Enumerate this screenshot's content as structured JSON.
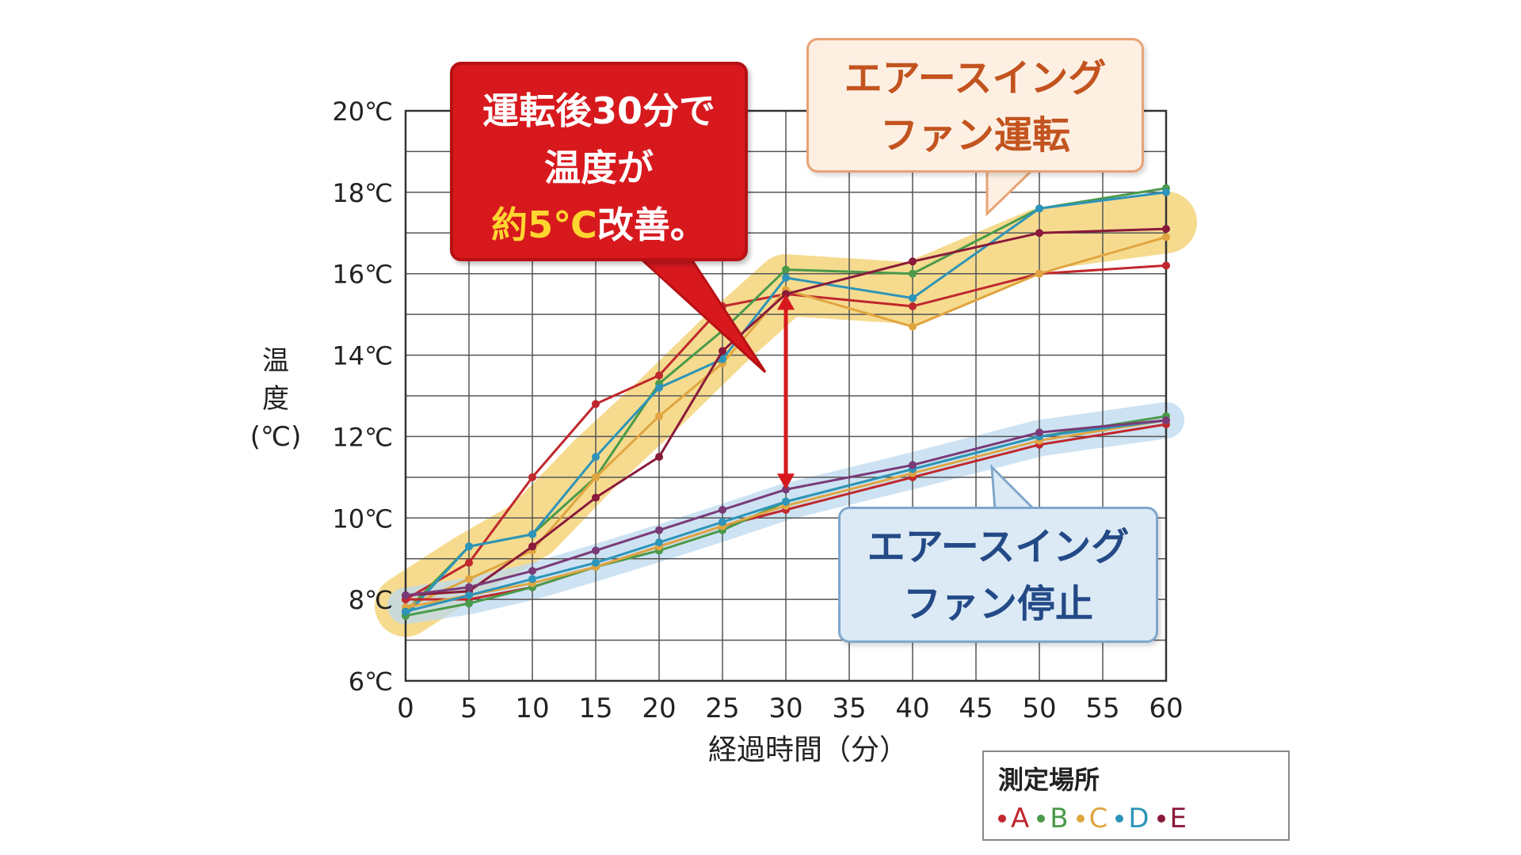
{
  "chart_data": {
    "type": "line",
    "x": [
      0,
      5,
      10,
      15,
      20,
      25,
      30,
      40,
      50,
      60
    ],
    "xticks": [
      "0",
      "5",
      "10",
      "15",
      "20",
      "25",
      "30",
      "35",
      "40",
      "45",
      "50",
      "55",
      "60"
    ],
    "yticks": [
      "6℃",
      "8℃",
      "10℃",
      "12℃",
      "14℃",
      "16℃",
      "18℃",
      "20℃"
    ],
    "xlim": [
      0,
      60
    ],
    "ylim": [
      6,
      20
    ],
    "xlabel": "経過時間（分）",
    "ylabel_lines": [
      "温",
      "度",
      "(℃)"
    ],
    "grid": true,
    "groups": [
      {
        "group": "エアースイングファン運転",
        "highlight_color": "#f3cf6a",
        "series": [
          {
            "location": "A",
            "color": "#c0282d",
            "values": [
              8.0,
              8.9,
              11.0,
              12.8,
              13.5,
              15.2,
              15.5,
              15.2,
              16.0,
              16.2
            ]
          },
          {
            "location": "B",
            "color": "#4a9a4a",
            "values": [
              7.7,
              9.3,
              9.6,
              11.0,
              13.3,
              14.6,
              16.1,
              16.0,
              17.6,
              18.1
            ]
          },
          {
            "location": "C",
            "color": "#e0a540",
            "values": [
              7.8,
              8.5,
              9.2,
              11.0,
              12.5,
              13.8,
              15.6,
              14.7,
              16.0,
              16.9
            ]
          },
          {
            "location": "D",
            "color": "#2e94b9",
            "values": [
              7.6,
              9.3,
              9.6,
              11.5,
              13.2,
              13.9,
              15.9,
              15.4,
              17.6,
              18.0
            ]
          },
          {
            "location": "E",
            "color": "#8a1a3a",
            "values": [
              8.1,
              8.2,
              9.3,
              10.5,
              11.5,
              14.1,
              15.5,
              16.3,
              17.0,
              17.1
            ]
          }
        ]
      },
      {
        "group": "エアースイングファン停止",
        "highlight_color": "#bcd9ef",
        "series": [
          {
            "location": "A",
            "color": "#c0282d",
            "values": [
              8.0,
              8.0,
              8.3,
              8.8,
              9.3,
              9.8,
              10.2,
              11.0,
              11.8,
              12.3
            ]
          },
          {
            "location": "B",
            "color": "#4a9a4a",
            "values": [
              7.6,
              7.9,
              8.3,
              8.8,
              9.2,
              9.7,
              10.4,
              11.2,
              12.0,
              12.5
            ]
          },
          {
            "location": "C",
            "color": "#e0a540",
            "values": [
              7.8,
              8.1,
              8.4,
              8.8,
              9.3,
              9.8,
              10.3,
              11.1,
              11.9,
              12.4
            ]
          },
          {
            "location": "D",
            "color": "#2e94b9",
            "values": [
              7.7,
              8.1,
              8.5,
              8.9,
              9.4,
              9.9,
              10.4,
              11.2,
              12.0,
              12.4
            ]
          },
          {
            "location": "E",
            "color": "#7a3a78",
            "values": [
              8.1,
              8.3,
              8.7,
              9.2,
              9.7,
              10.2,
              10.7,
              11.3,
              12.1,
              12.4
            ]
          }
        ]
      }
    ],
    "annotation_arrow": {
      "x": 30,
      "from": 10.7,
      "to": 15.5,
      "color": "#d7191e"
    }
  },
  "callouts": {
    "red": {
      "line1": "運転後30分で",
      "line2": "温度が",
      "line3_highlight": "約5℃",
      "line3_rest": "改善。"
    },
    "orange": {
      "line1": "エアースイング",
      "line2": "ファン運転"
    },
    "blue": {
      "line1": "エアースイング",
      "line2": "ファン停止"
    }
  },
  "legend": {
    "title": "測定場所",
    "items": [
      {
        "label": "A",
        "color": "#c0282d"
      },
      {
        "label": "B",
        "color": "#4a9a4a"
      },
      {
        "label": "C",
        "color": "#e0a540"
      },
      {
        "label": "D",
        "color": "#2e94b9"
      },
      {
        "label": "E",
        "color": "#8a1a3a"
      }
    ]
  }
}
